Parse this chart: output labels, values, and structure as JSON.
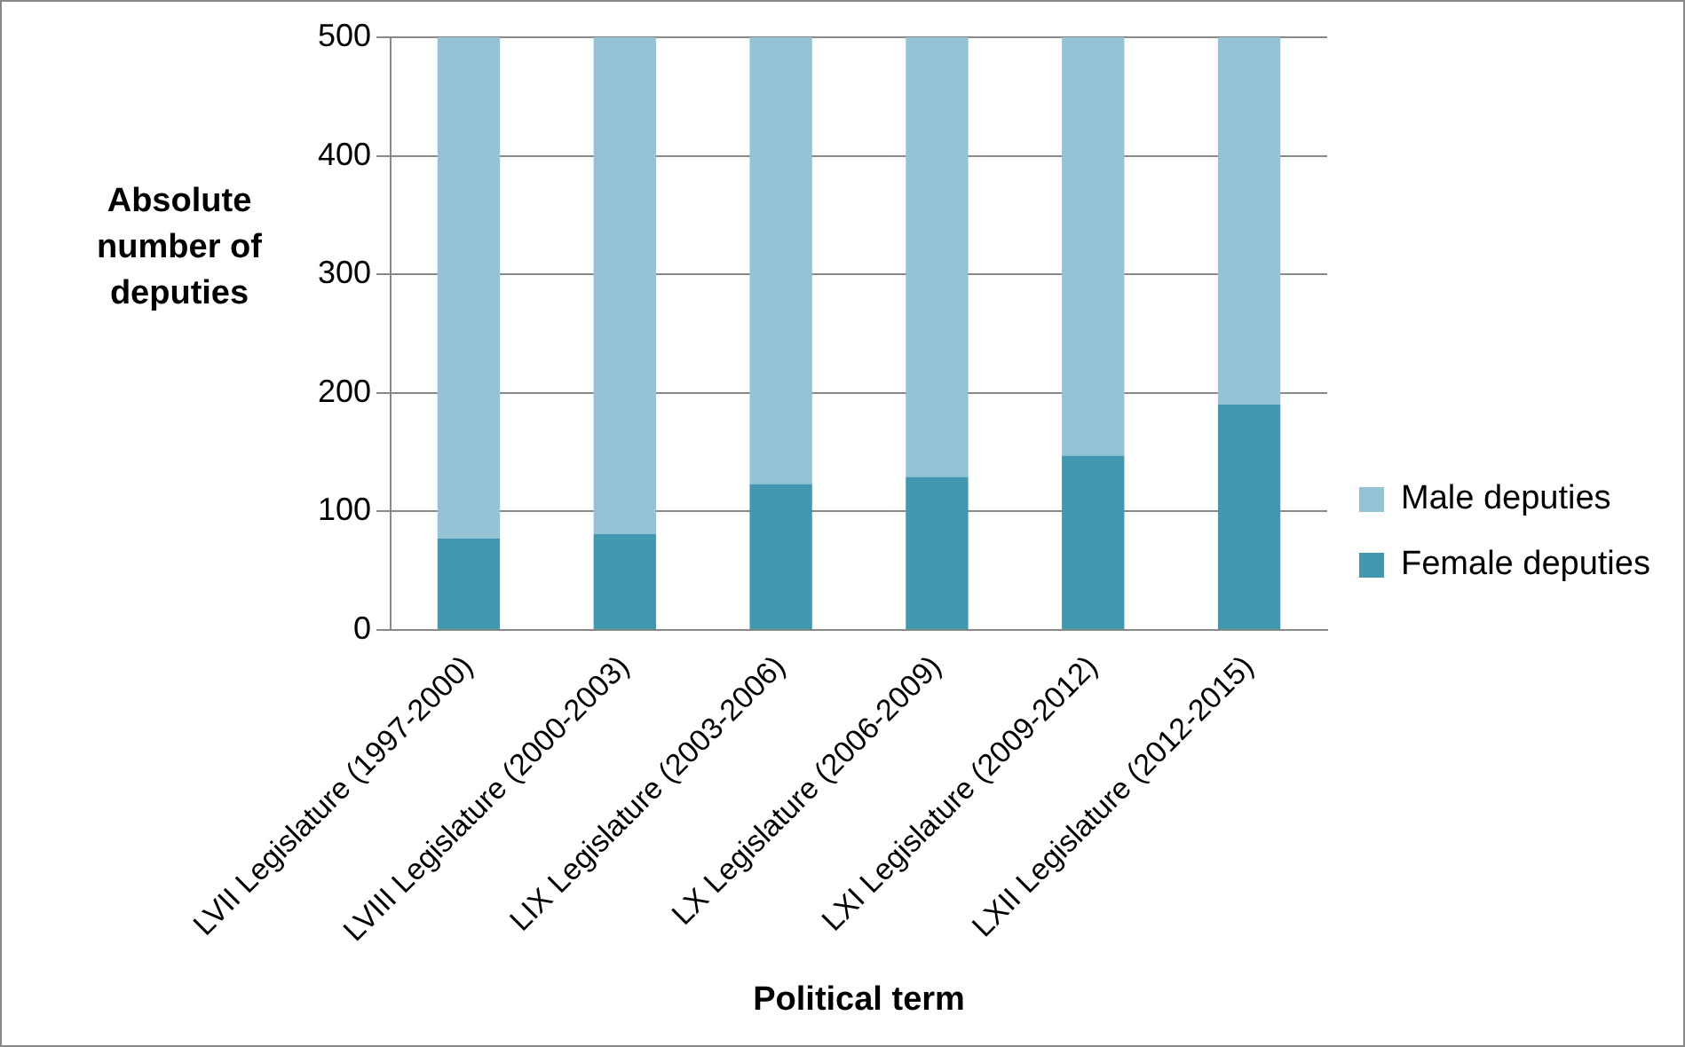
{
  "chart_data": {
    "type": "bar",
    "stacked": true,
    "xlabel": "Political term",
    "ylabel": "Absolute number of deputies",
    "categories": [
      "LVII Legislature (1997-2000)",
      "LVIII Legislature (2000-2003)",
      "LIX Legislature (2003-2006)",
      "LX Legislature (2006-2009)",
      "LXI Legislature (2009-2012)",
      "LXII Legislature (2012-2015)"
    ],
    "series": [
      {
        "name": "Female deputies",
        "color": "#4298ae",
        "values": [
          77,
          81,
          123,
          129,
          147,
          190
        ]
      },
      {
        "name": "Male deputies",
        "color": "#93c3d4",
        "values": [
          423,
          419,
          377,
          371,
          353,
          310
        ]
      }
    ],
    "ylim": [
      0,
      500
    ],
    "yticks": [
      0,
      100,
      200,
      300,
      400,
      500
    ],
    "grid": "y",
    "legend": "right"
  }
}
